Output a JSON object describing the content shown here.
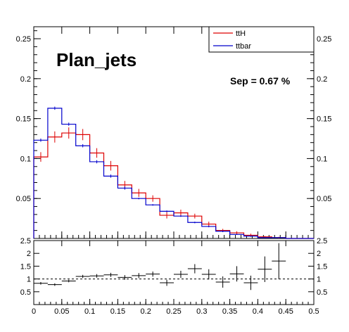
{
  "chart_data": [
    {
      "type": "histogram",
      "title": "Plan_jets",
      "annotation": "Sep = 0.67 %",
      "xlabel": "",
      "ylabel": "",
      "xlim": [
        0,
        0.5
      ],
      "ylim": [
        0,
        0.265
      ],
      "bin_width": 0.025,
      "bin_edges": [
        0,
        0.025,
        0.05,
        0.075,
        0.1,
        0.125,
        0.15,
        0.175,
        0.2,
        0.225,
        0.25,
        0.275,
        0.3,
        0.325,
        0.35,
        0.375,
        0.4,
        0.425,
        0.45,
        0.475,
        0.5
      ],
      "x_ticks": [
        "0",
        "0.05",
        "0.1",
        "0.15",
        "0.2",
        "0.25",
        "0.3",
        "0.35",
        "0.4",
        "0.45",
        "0.5"
      ],
      "y_ticks": [
        "0.05",
        "0.1",
        "0.15",
        "0.2",
        "0.25"
      ],
      "legend_position": "top-right",
      "series": [
        {
          "name": "ttH",
          "color": "#dd0000",
          "values": [
            0.102,
            0.127,
            0.132,
            0.13,
            0.107,
            0.091,
            0.067,
            0.057,
            0.05,
            0.029,
            0.032,
            0.028,
            0.018,
            0.01,
            0.007,
            0.004,
            0.002,
            0.001,
            0.0,
            0.0
          ],
          "errors": [
            0.006,
            0.007,
            0.007,
            0.007,
            0.006,
            0.006,
            0.005,
            0.005,
            0.004,
            0.004,
            0.004,
            0.003,
            0.003,
            0.002,
            0.002,
            0.002,
            0.001,
            0.001,
            0.0,
            0.0
          ]
        },
        {
          "name": "ttbar",
          "color": "#0000cc",
          "values": [
            0.123,
            0.163,
            0.143,
            0.116,
            0.096,
            0.078,
            0.063,
            0.05,
            0.042,
            0.034,
            0.028,
            0.02,
            0.015,
            0.009,
            0.005,
            0.003,
            0.001,
            0.001,
            0.0,
            0.0
          ],
          "errors": [
            0.002,
            0.002,
            0.002,
            0.002,
            0.002,
            0.002,
            0.002,
            0.001,
            0.001,
            0.001,
            0.001,
            0.001,
            0.001,
            0.001,
            0.0005,
            0.0005,
            0.0003,
            0.0003,
            0.0,
            0.0
          ]
        }
      ]
    },
    {
      "type": "scatter",
      "xlim": [
        0,
        0.5
      ],
      "ylim": [
        0,
        2.5
      ],
      "x_ticks": [
        "0",
        "0.05",
        "0.1",
        "0.15",
        "0.2",
        "0.25",
        "0.3",
        "0.35",
        "0.4",
        "0.45",
        "0.5"
      ],
      "y_ticks": [
        "0.5",
        "1",
        "1.5",
        "2",
        "2.5"
      ],
      "reference_line": 1,
      "points": [
        {
          "x": 0.0125,
          "y": 0.83,
          "err": 0.05
        },
        {
          "x": 0.0375,
          "y": 0.78,
          "err": 0.05
        },
        {
          "x": 0.0625,
          "y": 0.92,
          "err": 0.05
        },
        {
          "x": 0.0875,
          "y": 1.1,
          "err": 0.06
        },
        {
          "x": 0.1125,
          "y": 1.12,
          "err": 0.07
        },
        {
          "x": 0.1375,
          "y": 1.16,
          "err": 0.08
        },
        {
          "x": 0.1625,
          "y": 1.06,
          "err": 0.09
        },
        {
          "x": 0.1875,
          "y": 1.13,
          "err": 0.1
        },
        {
          "x": 0.2125,
          "y": 1.19,
          "err": 0.1
        },
        {
          "x": 0.2375,
          "y": 0.85,
          "err": 0.12
        },
        {
          "x": 0.2625,
          "y": 1.18,
          "err": 0.14
        },
        {
          "x": 0.2875,
          "y": 1.4,
          "err": 0.18
        },
        {
          "x": 0.3125,
          "y": 1.18,
          "err": 0.2
        },
        {
          "x": 0.3375,
          "y": 0.88,
          "err": 0.22
        },
        {
          "x": 0.3625,
          "y": 1.2,
          "err": 0.3
        },
        {
          "x": 0.3875,
          "y": 0.85,
          "err": 0.28
        },
        {
          "x": 0.4125,
          "y": 1.38,
          "err": 0.5
        },
        {
          "x": 0.4375,
          "y": 1.7,
          "err": 0.7
        }
      ]
    }
  ]
}
